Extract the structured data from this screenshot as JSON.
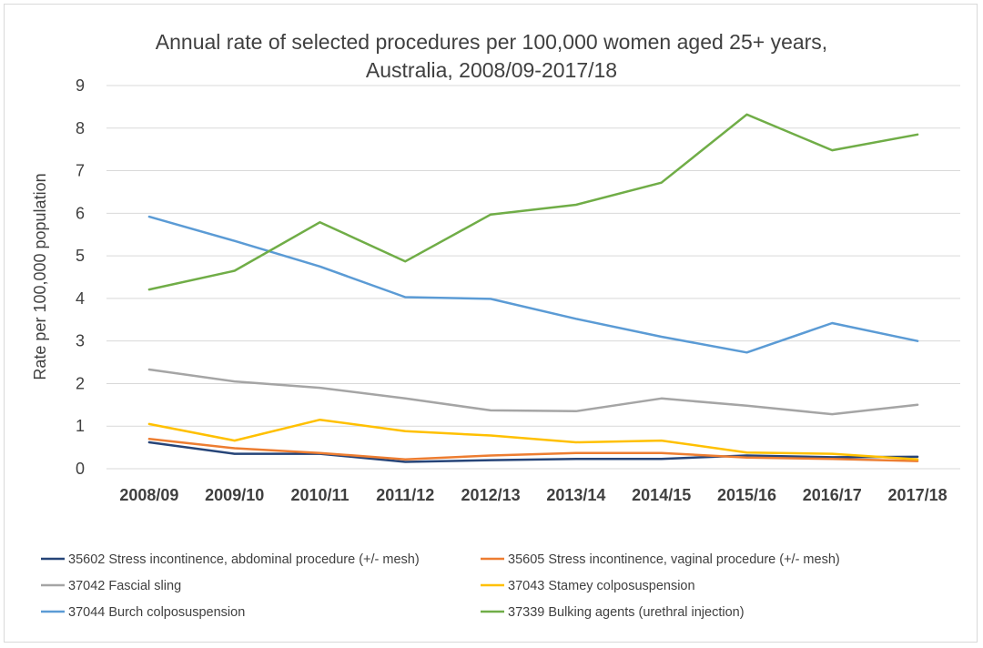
{
  "chart_data": {
    "type": "line",
    "title_lines": [
      "Annual rate of selected  procedures per 100,000 women aged 25+ years,",
      "Australia,  2008/09-2017/18"
    ],
    "xlabel": "",
    "ylabel": "Rate per 100,000 population",
    "ylim": [
      0,
      9
    ],
    "yticks": [
      0,
      1,
      2,
      3,
      4,
      5,
      6,
      7,
      8,
      9
    ],
    "grid": true,
    "legend_position": "bottom",
    "categories": [
      "2008/09",
      "2009/10",
      "2010/11",
      "2011/12",
      "2012/13",
      "2013/14",
      "2014/15",
      "2015/16",
      "2016/17",
      "2017/18"
    ],
    "series": [
      {
        "name": "35602 Stress incontinence, abdominal procedure (+/- mesh)",
        "color": "#264478",
        "values": [
          0.62,
          0.35,
          0.35,
          0.16,
          0.2,
          0.23,
          0.23,
          0.31,
          0.27,
          0.28
        ]
      },
      {
        "name": "35605 Stress incontinence, vaginal procedure (+/- mesh)",
        "color": "#ED7D31",
        "values": [
          0.7,
          0.48,
          0.37,
          0.22,
          0.31,
          0.37,
          0.37,
          0.26,
          0.23,
          0.18
        ]
      },
      {
        "name": "37042 Fascial sling",
        "color": "#A5A5A5",
        "values": [
          2.33,
          2.05,
          1.9,
          1.65,
          1.37,
          1.35,
          1.65,
          1.48,
          1.28,
          1.5
        ]
      },
      {
        "name": "37043 Stamey colposuspension",
        "color": "#FFC000",
        "values": [
          1.05,
          0.66,
          1.15,
          0.88,
          0.78,
          0.62,
          0.66,
          0.38,
          0.35,
          0.22
        ]
      },
      {
        "name": "37044 Burch colposuspension",
        "color": "#5B9BD5",
        "values": [
          5.92,
          5.35,
          4.75,
          4.03,
          3.99,
          3.52,
          3.1,
          2.73,
          3.42,
          3.0
        ]
      },
      {
        "name": "37339 Bulking agents (urethral injection)",
        "color": "#70AD47",
        "values": [
          4.21,
          4.65,
          5.79,
          4.87,
          5.97,
          6.2,
          6.72,
          8.32,
          7.48,
          7.85
        ]
      }
    ]
  }
}
